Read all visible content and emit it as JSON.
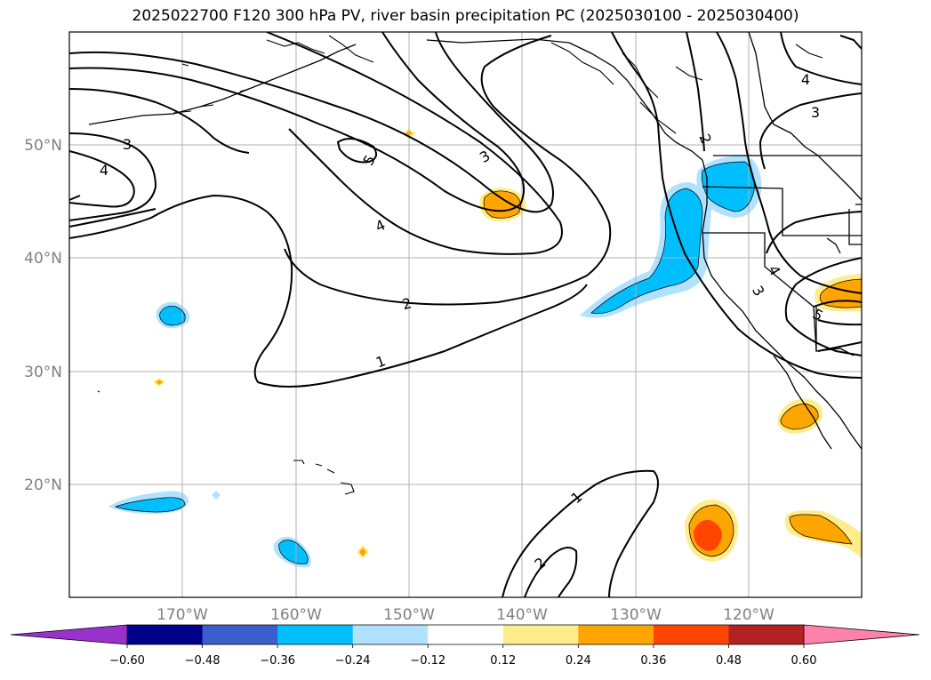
{
  "title": "2025022700 F120 300 hPa PV, river basin precipitation PC (2025030100 - 2025030400)",
  "map": {
    "extent": {
      "lon": [
        -180,
        -110
      ],
      "lat": [
        10,
        60
      ]
    },
    "grid_lons": [
      -170,
      -160,
      -150,
      -140,
      -130,
      -120
    ],
    "grid_lats": [
      20,
      30,
      40,
      50
    ],
    "lon_labels": [
      "170°W",
      "160°W",
      "150°W",
      "140°W",
      "130°W",
      "120°W"
    ],
    "lat_labels": [
      "20°N",
      "30°N",
      "40°N",
      "50°N"
    ],
    "grid_on": true
  },
  "pv_contour_labels": [
    "3",
    "4",
    "5",
    "3",
    "4",
    "2",
    "1",
    "2",
    "3",
    "4",
    "3",
    "4",
    "5",
    "1",
    "2"
  ],
  "colorbar": {
    "ticks": [
      "−0.60",
      "−0.48",
      "−0.36",
      "−0.24",
      "−0.12",
      "0.12",
      "0.24",
      "0.36",
      "0.48",
      "0.60"
    ],
    "colors": [
      "#9932cc",
      "#00008b",
      "#3a5fcd",
      "#00bfff",
      "#b0e2ff",
      "#ffffff",
      "#ffec8b",
      "#ffa500",
      "#ff4500",
      "#b22222",
      "#ff82ab"
    ],
    "extend": "both"
  },
  "precip_pc_colors": {
    "light_blue": "#b0e2ff",
    "blue": "#00bfff",
    "light_yellow": "#ffec8b",
    "orange": "#ffa500",
    "red_orange": "#ff4500"
  }
}
